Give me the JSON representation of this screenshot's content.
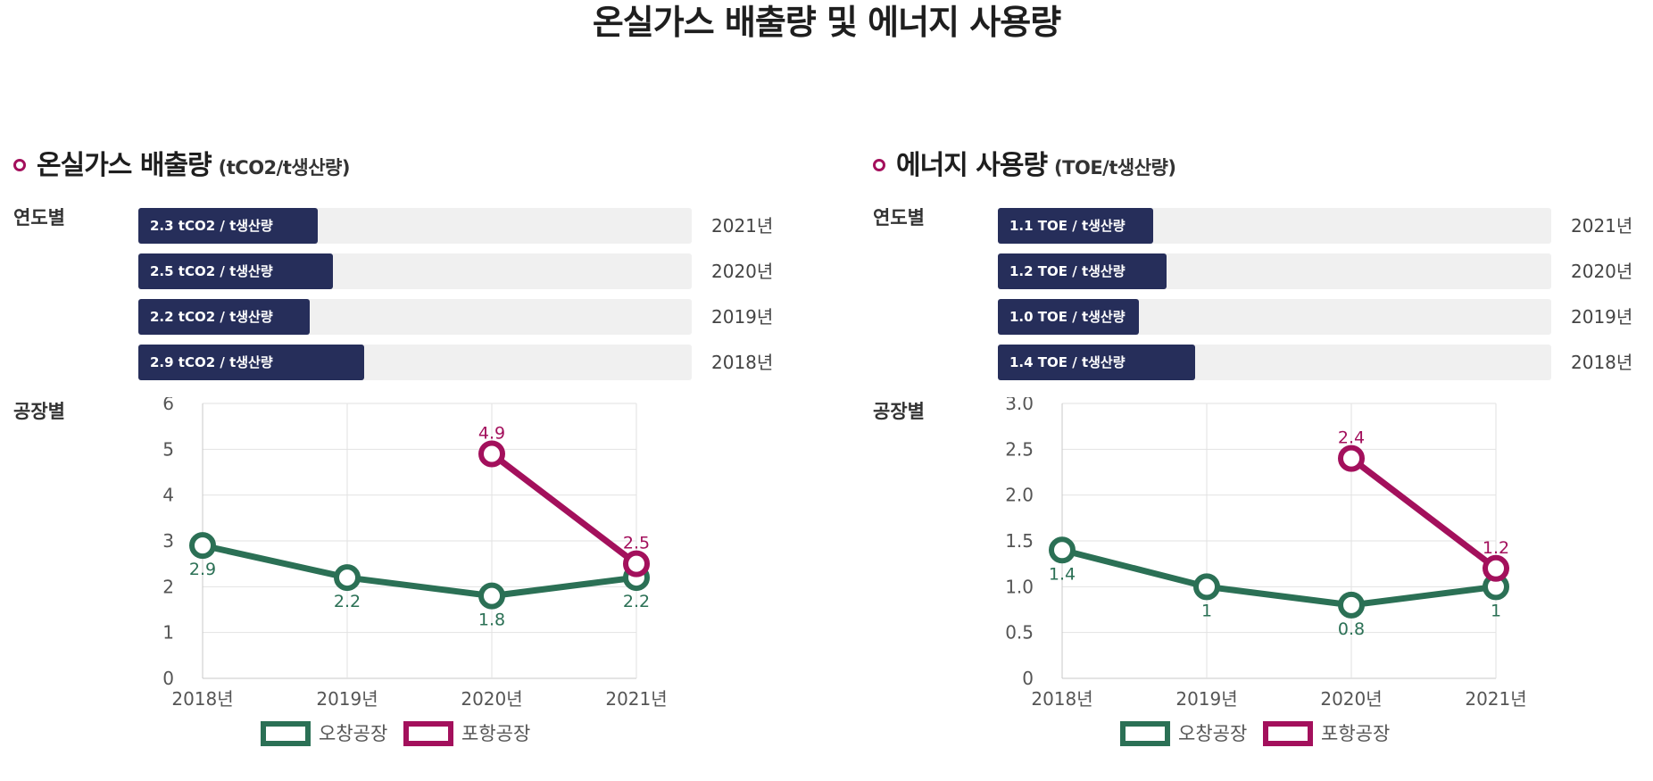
{
  "page_title": "온실가스 배출량 및 에너지 사용량",
  "by_year_label": "연도별",
  "by_plant_label": "공장별",
  "colors": {
    "accent": "#a3105c",
    "bar": "#262e5a",
    "track": "#f0f0f0",
    "ochang": "#2b7055",
    "pohang": "#a3105c"
  },
  "panels": [
    {
      "title": "온실가스 배출량",
      "unit": "(tCO2/t생산량)",
      "bars": [
        {
          "label": "2.3 tCO2 / t생산량",
          "year": "2021년",
          "value": 2.3
        },
        {
          "label": "2.5 tCO2 / t생산량",
          "year": "2020년",
          "value": 2.5
        },
        {
          "label": "2.2 tCO2 / t생산량",
          "year": "2019년",
          "value": 2.2
        },
        {
          "label": "2.9 tCO2 / t생산량",
          "year": "2018년",
          "value": 2.9
        }
      ]
    },
    {
      "title": "에너지 사용량",
      "unit": "(TOE/t생산량)",
      "bars": [
        {
          "label": "1.1 TOE / t생산량",
          "year": "2021년",
          "value": 1.1
        },
        {
          "label": "1.2 TOE / t생산량",
          "year": "2020년",
          "value": 1.2
        },
        {
          "label": "1.0 TOE / t생산량",
          "year": "2019년",
          "value": 1.0
        },
        {
          "label": "1.4 TOE / t생산량",
          "year": "2018년",
          "value": 1.4
        }
      ]
    }
  ],
  "chart_data": [
    {
      "type": "bar",
      "categories": [
        "2021년",
        "2020년",
        "2019년",
        "2018년"
      ],
      "values": [
        2.3,
        2.5,
        2.2,
        2.9
      ],
      "bar_max": 7.1,
      "orientation": "horizontal"
    },
    {
      "type": "line",
      "categories": [
        "2018년",
        "2019년",
        "2020년",
        "2021년"
      ],
      "ylim": [
        0,
        6
      ],
      "yticks": [
        0,
        1,
        2,
        3,
        4,
        5,
        6
      ],
      "ytick_labels": [
        "0",
        "1",
        "2",
        "3",
        "4",
        "5",
        "6"
      ],
      "grid": true,
      "legend": "bottom",
      "series": [
        {
          "name": "오창공장",
          "color": "#2b7055",
          "values": [
            2.9,
            2.2,
            1.8,
            2.2
          ],
          "labels": [
            "2.9",
            "2.2",
            "1.8",
            "2.2"
          ],
          "label_pos": "below"
        },
        {
          "name": "포항공장",
          "color": "#a3105c",
          "values": [
            null,
            null,
            4.9,
            2.5
          ],
          "labels": [
            "",
            "",
            "4.9",
            "2.5"
          ],
          "label_pos": "above"
        }
      ]
    },
    {
      "type": "bar",
      "categories": [
        "2021년",
        "2020년",
        "2019년",
        "2018년"
      ],
      "values": [
        1.1,
        1.2,
        1.0,
        1.4
      ],
      "bar_max": 3.93,
      "orientation": "horizontal"
    },
    {
      "type": "line",
      "categories": [
        "2018년",
        "2019년",
        "2020년",
        "2021년"
      ],
      "ylim": [
        0,
        3
      ],
      "yticks": [
        0,
        0.5,
        1,
        1.5,
        2,
        2.5,
        3
      ],
      "ytick_labels": [
        "0",
        "0.5",
        "1.0",
        "1.5",
        "2.0",
        "2.5",
        "3.0"
      ],
      "grid": true,
      "legend": "bottom",
      "series": [
        {
          "name": "오창공장",
          "color": "#2b7055",
          "values": [
            1.4,
            1,
            0.8,
            1
          ],
          "labels": [
            "1.4",
            "1",
            "0.8",
            "1"
          ],
          "label_pos": "below"
        },
        {
          "name": "포항공장",
          "color": "#a3105c",
          "values": [
            null,
            null,
            2.4,
            1.2
          ],
          "labels": [
            "",
            "",
            "2.4",
            "1.2"
          ],
          "label_pos": "above"
        }
      ]
    }
  ]
}
